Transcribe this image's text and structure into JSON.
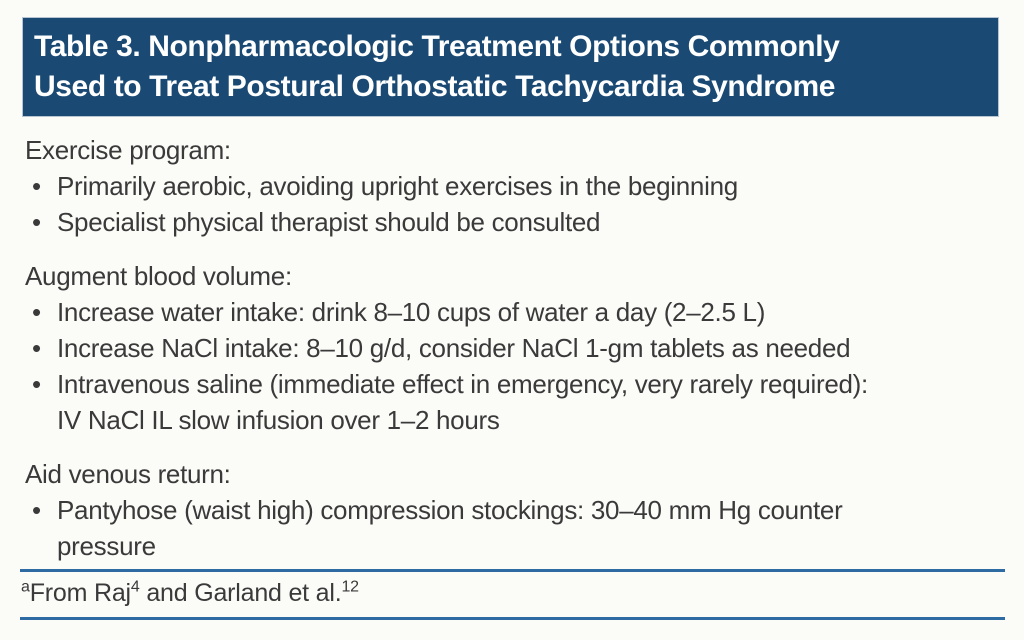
{
  "colors": {
    "page_background": "#fbfcf8",
    "header_background": "#1a4a73",
    "header_text": "#ffffff",
    "rule_blue": "#2e6ba3",
    "body_text": "#3a3a3a"
  },
  "header": {
    "line1": "Table 3. Nonpharmacologic Treatment Options Commonly",
    "line2": "Used to Treat Postural Orthostatic Tachycardia Syndrome"
  },
  "bullet_glyph": "•",
  "sections": [
    {
      "title": "Exercise program:",
      "bullets": [
        {
          "lines": [
            "Primarily aerobic, avoiding upright exercises in the beginning"
          ]
        },
        {
          "lines": [
            "Specialist physical therapist should be consulted"
          ]
        }
      ]
    },
    {
      "title": "Augment blood volume:",
      "bullets": [
        {
          "lines": [
            "Increase water intake: drink 8–10 cups of water a day (2–2.5 L)"
          ]
        },
        {
          "lines": [
            "Increase NaCl intake: 8–10 g/d, consider NaCl 1-gm tablets as needed"
          ]
        },
        {
          "lines": [
            "Intravenous saline (immediate effect in emergency, very rarely required):",
            "IV NaCl IL slow infusion over 1–2 hours"
          ]
        }
      ]
    },
    {
      "title": "Aid venous return:",
      "bullets": [
        {
          "lines": [
            "Pantyhose (waist high) compression stockings: 30–40 mm Hg counter",
            "pressure"
          ]
        }
      ]
    }
  ],
  "footnote": {
    "marker": "a",
    "text1": "From Raj",
    "ref1": "4",
    "text2": " and Garland et al.",
    "ref2": "12"
  }
}
